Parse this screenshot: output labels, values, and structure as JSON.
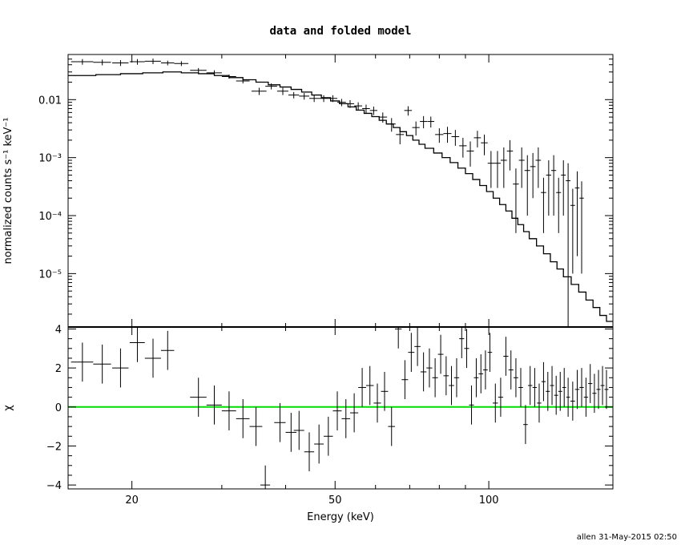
{
  "chart_data": {
    "title": "data and folded model",
    "xlabel": "Energy (keV)",
    "footer": "allen 31-May-2015 02:50",
    "xscale": "log",
    "xlim": [
      15,
      175
    ],
    "x_ticks": [
      {
        "v": 20,
        "label": "20"
      },
      {
        "v": 50,
        "label": "50"
      },
      {
        "v": 100,
        "label": "100"
      }
    ],
    "colors": {
      "data": "#000000",
      "model": "#000000",
      "zero_line": "#00dd00"
    },
    "panels": [
      {
        "name": "spectrum",
        "type": "scatter",
        "ylabel": "normalized counts s⁻¹ keV⁻¹",
        "yscale": "log",
        "ylim": [
          1.2e-06,
          0.06
        ],
        "y_ticks": [
          {
            "v": 0.01,
            "label": "0.01"
          },
          {
            "v": 0.001,
            "label": "10⁻³"
          },
          {
            "v": 0.0001,
            "label": "10⁻⁴"
          },
          {
            "v": 1e-05,
            "label": "10⁻⁵"
          }
        ],
        "data_points": [
          [
            16.0,
            0.045,
            0.8,
            0.005
          ],
          [
            17.5,
            0.044,
            0.7,
            0.005
          ],
          [
            19.0,
            0.043,
            0.7,
            0.005
          ],
          [
            20.5,
            0.045,
            0.7,
            0.005
          ],
          [
            22.0,
            0.046,
            0.8,
            0.005
          ],
          [
            23.5,
            0.043,
            0.7,
            0.004
          ],
          [
            25.0,
            0.042,
            0.8,
            0.004
          ],
          [
            27.0,
            0.032,
            1.0,
            0.003
          ],
          [
            29.0,
            0.029,
            1.0,
            0.003
          ],
          [
            31.0,
            0.025,
            1.0,
            0.002
          ],
          [
            33.0,
            0.021,
            1.0,
            0.002
          ],
          [
            35.5,
            0.014,
            1.2,
            0.002
          ],
          [
            37.5,
            0.017,
            1.0,
            0.002
          ],
          [
            39.5,
            0.014,
            1.0,
            0.002
          ],
          [
            41.5,
            0.012,
            1.0,
            0.0015
          ],
          [
            43.5,
            0.0115,
            1.0,
            0.0015
          ],
          [
            45.5,
            0.0105,
            1.0,
            0.0014
          ],
          [
            47.5,
            0.0105,
            1.0,
            0.0014
          ],
          [
            49.5,
            0.0105,
            1.0,
            0.0014
          ],
          [
            51.5,
            0.009,
            1.0,
            0.0013
          ],
          [
            53.5,
            0.0085,
            1.0,
            0.0013
          ],
          [
            55.5,
            0.0078,
            1.0,
            0.0012
          ],
          [
            57.5,
            0.007,
            1.0,
            0.0012
          ],
          [
            59.5,
            0.0065,
            1.0,
            0.0011
          ],
          [
            62.0,
            0.005,
            1.2,
            0.001
          ],
          [
            64.5,
            0.0038,
            1.2,
            0.001
          ],
          [
            67.0,
            0.0025,
            1.2,
            0.0008
          ],
          [
            69.5,
            0.0065,
            1.2,
            0.0012
          ],
          [
            72.0,
            0.0033,
            1.2,
            0.0009
          ],
          [
            74.5,
            0.0042,
            1.2,
            0.001
          ],
          [
            77.0,
            0.0042,
            1.2,
            0.0009
          ],
          [
            80.0,
            0.0025,
            1.5,
            0.0007
          ],
          [
            83.0,
            0.0026,
            1.5,
            0.0008
          ],
          [
            86.0,
            0.0023,
            1.5,
            0.0007
          ],
          [
            89.0,
            0.0016,
            1.5,
            0.0006
          ],
          [
            92.0,
            0.0013,
            1.5,
            0.0006
          ],
          [
            95.0,
            0.0022,
            1.5,
            0.0007
          ],
          [
            98.0,
            0.0018,
            1.5,
            0.0007
          ],
          [
            101.0,
            0.0008,
            1.5,
            0.0005
          ],
          [
            104.0,
            0.0008,
            1.5,
            0.0005
          ],
          [
            107.0,
            0.0009,
            1.5,
            0.0006
          ],
          [
            110.0,
            0.0013,
            1.5,
            0.0007
          ],
          [
            113.0,
            0.00035,
            1.5,
            0.0003
          ],
          [
            116.0,
            0.0009,
            1.5,
            0.0006
          ],
          [
            119.0,
            0.0006,
            1.5,
            0.0005
          ],
          [
            122.0,
            0.0007,
            1.5,
            0.0005
          ],
          [
            125.0,
            0.0009,
            1.5,
            0.0006
          ],
          [
            128.0,
            0.00025,
            1.5,
            0.0002
          ],
          [
            131.0,
            0.0005,
            1.5,
            0.0004
          ],
          [
            134.0,
            0.0006,
            1.5,
            0.0005
          ],
          [
            137.0,
            0.00025,
            1.5,
            0.0002
          ],
          [
            140.0,
            0.0005,
            1.5,
            0.0004
          ],
          [
            143.0,
            0.0004,
            1.5,
            0.0004
          ],
          [
            146.0,
            0.00015,
            1.5,
            0.00014
          ],
          [
            149.0,
            0.0003,
            1.5,
            0.00028
          ],
          [
            152.0,
            0.0002,
            1.5,
            0.00019
          ]
        ],
        "model_steps": [
          [
            15,
            0.026
          ],
          [
            17,
            0.027
          ],
          [
            19,
            0.028
          ],
          [
            21,
            0.029
          ],
          [
            23,
            0.03
          ],
          [
            25,
            0.029
          ],
          [
            27,
            0.028
          ],
          [
            29,
            0.026
          ],
          [
            31,
            0.024
          ],
          [
            33,
            0.022
          ],
          [
            35,
            0.02
          ],
          [
            37,
            0.018
          ],
          [
            39,
            0.0165
          ],
          [
            41,
            0.015
          ],
          [
            43,
            0.0135
          ],
          [
            45,
            0.012
          ],
          [
            47,
            0.0108
          ],
          [
            49,
            0.0095
          ],
          [
            51,
            0.0085
          ],
          [
            53,
            0.0075
          ],
          [
            55,
            0.0066
          ],
          [
            57,
            0.0058
          ],
          [
            59,
            0.0051
          ],
          [
            61,
            0.0044
          ],
          [
            63,
            0.0038
          ],
          [
            65,
            0.0033
          ],
          [
            67,
            0.0028
          ],
          [
            69,
            0.0024
          ],
          [
            71,
            0.002
          ],
          [
            73,
            0.0017
          ],
          [
            75,
            0.00145
          ],
          [
            78,
            0.0012
          ],
          [
            81,
            0.001
          ],
          [
            84,
            0.00082
          ],
          [
            87,
            0.00066
          ],
          [
            90,
            0.00053
          ],
          [
            93,
            0.00042
          ],
          [
            96,
            0.00033
          ],
          [
            99,
            0.00026
          ],
          [
            102,
            0.0002
          ],
          [
            105,
            0.000155
          ],
          [
            108,
            0.00012
          ],
          [
            111,
            9e-05
          ],
          [
            114,
            7e-05
          ],
          [
            117,
            5.3e-05
          ],
          [
            120,
            4e-05
          ],
          [
            124,
            3e-05
          ],
          [
            128,
            2.2e-05
          ],
          [
            132,
            1.6e-05
          ],
          [
            136,
            1.2e-05
          ],
          [
            140,
            8.8e-06
          ],
          [
            145,
            6.5e-06
          ],
          [
            150,
            4.8e-06
          ],
          [
            155,
            3.5e-06
          ],
          [
            160,
            2.6e-06
          ],
          [
            165,
            1.9e-06
          ],
          [
            170,
            1.5e-06
          ],
          [
            175,
            1.5e-06
          ]
        ]
      },
      {
        "name": "residuals",
        "type": "scatter",
        "ylabel": "χ",
        "ylim": [
          -4.2,
          4.1
        ],
        "y_ticks": [
          {
            "v": -4,
            "label": "−4"
          },
          {
            "v": -2,
            "label": "−2"
          },
          {
            "v": 0,
            "label": "0"
          },
          {
            "v": 2,
            "label": "2"
          },
          {
            "v": 4,
            "label": "4"
          }
        ],
        "points": [
          [
            16.0,
            2.3,
            0.8,
            1.0
          ],
          [
            17.5,
            2.2,
            0.7,
            1.0
          ],
          [
            19.0,
            2.0,
            0.7,
            1.0
          ],
          [
            20.5,
            3.3,
            0.7,
            1.0
          ],
          [
            22.0,
            2.5,
            0.8,
            1.0
          ],
          [
            23.5,
            2.9,
            0.7,
            1.0
          ],
          [
            27.0,
            0.5,
            1.0,
            1.0
          ],
          [
            29.0,
            0.1,
            1.0,
            1.0
          ],
          [
            31.0,
            -0.2,
            1.0,
            1.0
          ],
          [
            33.0,
            -0.6,
            1.0,
            1.0
          ],
          [
            35.0,
            -1.0,
            1.0,
            1.0
          ],
          [
            36.5,
            -4.0,
            0.8,
            1.0
          ],
          [
            39.0,
            -0.8,
            1.0,
            1.0
          ],
          [
            41.0,
            -1.3,
            1.0,
            1.0
          ],
          [
            42.5,
            -1.2,
            1.0,
            1.0
          ],
          [
            44.5,
            -2.3,
            1.0,
            1.0
          ],
          [
            46.5,
            -1.9,
            1.0,
            1.0
          ],
          [
            48.5,
            -1.5,
            1.0,
            1.0
          ],
          [
            50.5,
            -0.2,
            1.0,
            1.0
          ],
          [
            52.5,
            -0.6,
            1.0,
            1.0
          ],
          [
            54.5,
            -0.3,
            1.0,
            1.0
          ],
          [
            56.5,
            1.0,
            1.0,
            1.0
          ],
          [
            58.5,
            1.1,
            1.0,
            1.0
          ],
          [
            60.5,
            0.2,
            1.0,
            1.0
          ],
          [
            62.5,
            0.8,
            1.0,
            1.0
          ],
          [
            64.5,
            -1.0,
            1.0,
            1.0
          ],
          [
            66.5,
            4.0,
            1.0,
            1.0
          ],
          [
            68.5,
            1.4,
            1.0,
            1.0
          ],
          [
            70.5,
            2.8,
            1.0,
            1.0
          ],
          [
            72.5,
            3.1,
            1.0,
            1.0
          ],
          [
            74.5,
            1.8,
            1.0,
            1.0
          ],
          [
            76.5,
            2.0,
            1.0,
            1.0
          ],
          [
            78.5,
            1.5,
            1.0,
            1.0
          ],
          [
            80.5,
            2.7,
            1.0,
            1.0
          ],
          [
            82.5,
            1.6,
            1.0,
            1.0
          ],
          [
            84.5,
            1.1,
            1.0,
            1.0
          ],
          [
            86.5,
            1.5,
            1.0,
            1.0
          ],
          [
            88.5,
            3.5,
            1.0,
            1.0
          ],
          [
            90.5,
            3.0,
            1.0,
            1.0
          ],
          [
            92.5,
            0.1,
            1.0,
            1.0
          ],
          [
            94.5,
            1.5,
            1.0,
            1.0
          ],
          [
            96.5,
            1.7,
            1.0,
            1.0
          ],
          [
            98.5,
            1.9,
            1.0,
            1.0
          ],
          [
            100.5,
            2.8,
            1.0,
            1.0
          ],
          [
            103.0,
            0.2,
            1.2,
            1.0
          ],
          [
            105.5,
            0.5,
            1.2,
            1.0
          ],
          [
            108.0,
            2.6,
            1.2,
            1.0
          ],
          [
            110.5,
            1.9,
            1.2,
            1.0
          ],
          [
            113.0,
            1.5,
            1.2,
            1.0
          ],
          [
            115.5,
            1.0,
            1.2,
            1.0
          ],
          [
            118.0,
            -0.9,
            1.2,
            1.0
          ],
          [
            120.5,
            1.1,
            1.2,
            1.0
          ],
          [
            123.0,
            1.0,
            1.2,
            1.0
          ],
          [
            125.5,
            0.2,
            1.2,
            1.0
          ],
          [
            128.0,
            1.3,
            1.2,
            1.0
          ],
          [
            130.5,
            0.8,
            1.2,
            1.0
          ],
          [
            133.0,
            1.1,
            1.2,
            1.0
          ],
          [
            135.5,
            0.6,
            1.2,
            1.0
          ],
          [
            138.0,
            0.8,
            1.2,
            1.0
          ],
          [
            140.5,
            1.0,
            1.2,
            1.0
          ],
          [
            143.0,
            0.5,
            1.2,
            1.0
          ],
          [
            146.0,
            0.3,
            1.5,
            1.0
          ],
          [
            149.0,
            0.9,
            1.5,
            1.0
          ],
          [
            152.0,
            1.0,
            1.5,
            1.0
          ],
          [
            155.0,
            0.5,
            1.5,
            1.0
          ],
          [
            158.0,
            1.2,
            1.5,
            1.0
          ],
          [
            161.0,
            0.7,
            1.5,
            1.0
          ],
          [
            164.0,
            0.9,
            1.5,
            1.0
          ],
          [
            167.0,
            1.1,
            1.5,
            1.0
          ],
          [
            170.0,
            0.9,
            1.5,
            1.0
          ]
        ]
      }
    ]
  }
}
